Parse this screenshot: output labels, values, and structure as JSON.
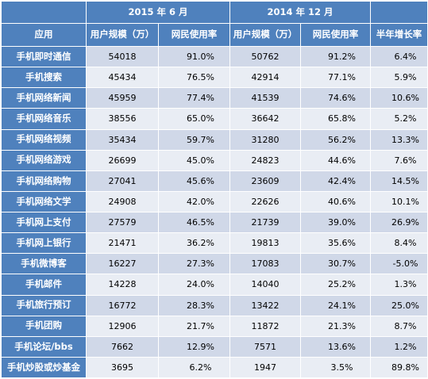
{
  "header": {
    "group_a": "2015 年 6 月",
    "group_b": "2014 年 12 月",
    "app_label": "应用",
    "users_a": "用户规模（万）",
    "rate_a": "网民使用率",
    "users_b": "用户规模（万）",
    "rate_b": "网民使用率",
    "growth": "半年增长率"
  },
  "rows": [
    {
      "app": "手机即时通信",
      "users_a": "54018",
      "rate_a": "91.0%",
      "users_b": "50762",
      "rate_b": "91.2%",
      "growth": "6.4%"
    },
    {
      "app": "手机搜索",
      "users_a": "45434",
      "rate_a": "76.5%",
      "users_b": "42914",
      "rate_b": "77.1%",
      "growth": "5.9%"
    },
    {
      "app": "手机网络新闻",
      "users_a": "45959",
      "rate_a": "77.4%",
      "users_b": "41539",
      "rate_b": "74.6%",
      "growth": "10.6%"
    },
    {
      "app": "手机网络音乐",
      "users_a": "38556",
      "rate_a": "65.0%",
      "users_b": "36642",
      "rate_b": "65.8%",
      "growth": "5.2%"
    },
    {
      "app": "手机网络视频",
      "users_a": "35434",
      "rate_a": "59.7%",
      "users_b": "31280",
      "rate_b": "56.2%",
      "growth": "13.3%"
    },
    {
      "app": "手机网络游戏",
      "users_a": "26699",
      "rate_a": "45.0%",
      "users_b": "24823",
      "rate_b": "44.6%",
      "growth": "7.6%"
    },
    {
      "app": "手机网络购物",
      "users_a": "27041",
      "rate_a": "45.6%",
      "users_b": "23609",
      "rate_b": "42.4%",
      "growth": "14.5%"
    },
    {
      "app": "手机网络文学",
      "users_a": "24908",
      "rate_a": "42.0%",
      "users_b": "22626",
      "rate_b": "40.6%",
      "growth": "10.1%"
    },
    {
      "app": "手机网上支付",
      "users_a": "27579",
      "rate_a": "46.5%",
      "users_b": "21739",
      "rate_b": "39.0%",
      "growth": "26.9%"
    },
    {
      "app": "手机网上银行",
      "users_a": "21471",
      "rate_a": "36.2%",
      "users_b": "19813",
      "rate_b": "35.6%",
      "growth": "8.4%"
    },
    {
      "app": "手机微博客",
      "users_a": "16227",
      "rate_a": "27.3%",
      "users_b": "17083",
      "rate_b": "30.7%",
      "growth": "-5.0%"
    },
    {
      "app": "手机邮件",
      "users_a": "14228",
      "rate_a": "24.0%",
      "users_b": "14040",
      "rate_b": "25.2%",
      "growth": "1.3%"
    },
    {
      "app": "手机旅行预订",
      "users_a": "16772",
      "rate_a": "28.3%",
      "users_b": "13422",
      "rate_b": "24.1%",
      "growth": "25.0%"
    },
    {
      "app": "手机团购",
      "users_a": "12906",
      "rate_a": "21.7%",
      "users_b": "11872",
      "rate_b": "21.3%",
      "growth": "8.7%"
    },
    {
      "app": "手机论坛/bbs",
      "users_a": "7662",
      "rate_a": "12.9%",
      "users_b": "7571",
      "rate_b": "13.6%",
      "growth": "1.2%"
    },
    {
      "app": "手机炒股或炒基金",
      "users_a": "3695",
      "rate_a": "6.2%",
      "users_b": "1947",
      "rate_b": "3.5%",
      "growth": "89.8%"
    }
  ],
  "colors": {
    "header_bg": "#4f81bd",
    "row_odd": "#d0d8e8",
    "row_even": "#e9edf4"
  }
}
